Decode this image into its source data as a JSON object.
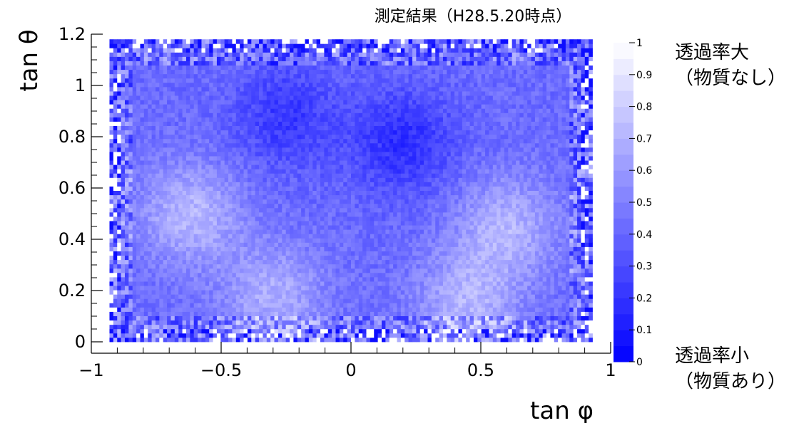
{
  "chart_data": {
    "type": "heatmap",
    "title": "測定結果（H28.5.20時点）",
    "xlabel": "tan φ",
    "ylabel": "tan θ",
    "xlim": [
      -1,
      1
    ],
    "ylim": [
      0,
      1.2
    ],
    "x_ticks": [
      -1,
      -0.5,
      0,
      0.5,
      1
    ],
    "x_tick_labels": [
      "−1",
      "−0.5",
      "0",
      "0.5",
      "1"
    ],
    "y_ticks": [
      0,
      0.2,
      0.4,
      0.6,
      0.8,
      1,
      1.2
    ],
    "y_tick_labels": [
      "0",
      "0.2",
      "0.4",
      "0.6",
      "0.8",
      "1",
      "1.2"
    ],
    "data_extent": {
      "x": [
        -0.93,
        0.93
      ],
      "y": [
        0,
        1.18
      ]
    },
    "value_description": "transmission ratio",
    "colorscale": {
      "min": 0,
      "max": 1,
      "ticks": [
        0,
        0.1,
        0.2,
        0.3,
        0.4,
        0.5,
        0.6,
        0.7,
        0.8,
        0.9,
        1
      ],
      "tick_labels": [
        "0",
        "0.1",
        "0.2",
        "0.3",
        "0.4",
        "0.5",
        "0.6",
        "0.7",
        "0.8",
        "0.9",
        "1"
      ],
      "color_low": "#0000ff",
      "color_high": "#ffffff",
      "label_high_line1": "透過率大",
      "label_high_line2": "（物質なし）",
      "label_low_line1": "透過率小",
      "label_low_line2": "（物質あり）"
    },
    "features": [
      {
        "description": "low transmission region",
        "x": -0.25,
        "y": 0.88,
        "value": 0.22
      },
      {
        "description": "low transmission region",
        "x": 0.2,
        "y": 0.78,
        "value": 0.18
      },
      {
        "description": "high transmission region",
        "x": -0.62,
        "y": 0.5,
        "value": 0.72
      },
      {
        "description": "high transmission region",
        "x": 0.6,
        "y": 0.45,
        "value": 0.7
      },
      {
        "description": "high transmission region",
        "x": -0.3,
        "y": 0.18,
        "value": 0.68
      },
      {
        "description": "high transmission region",
        "x": 0.45,
        "y": 0.15,
        "value": 0.7
      }
    ]
  }
}
